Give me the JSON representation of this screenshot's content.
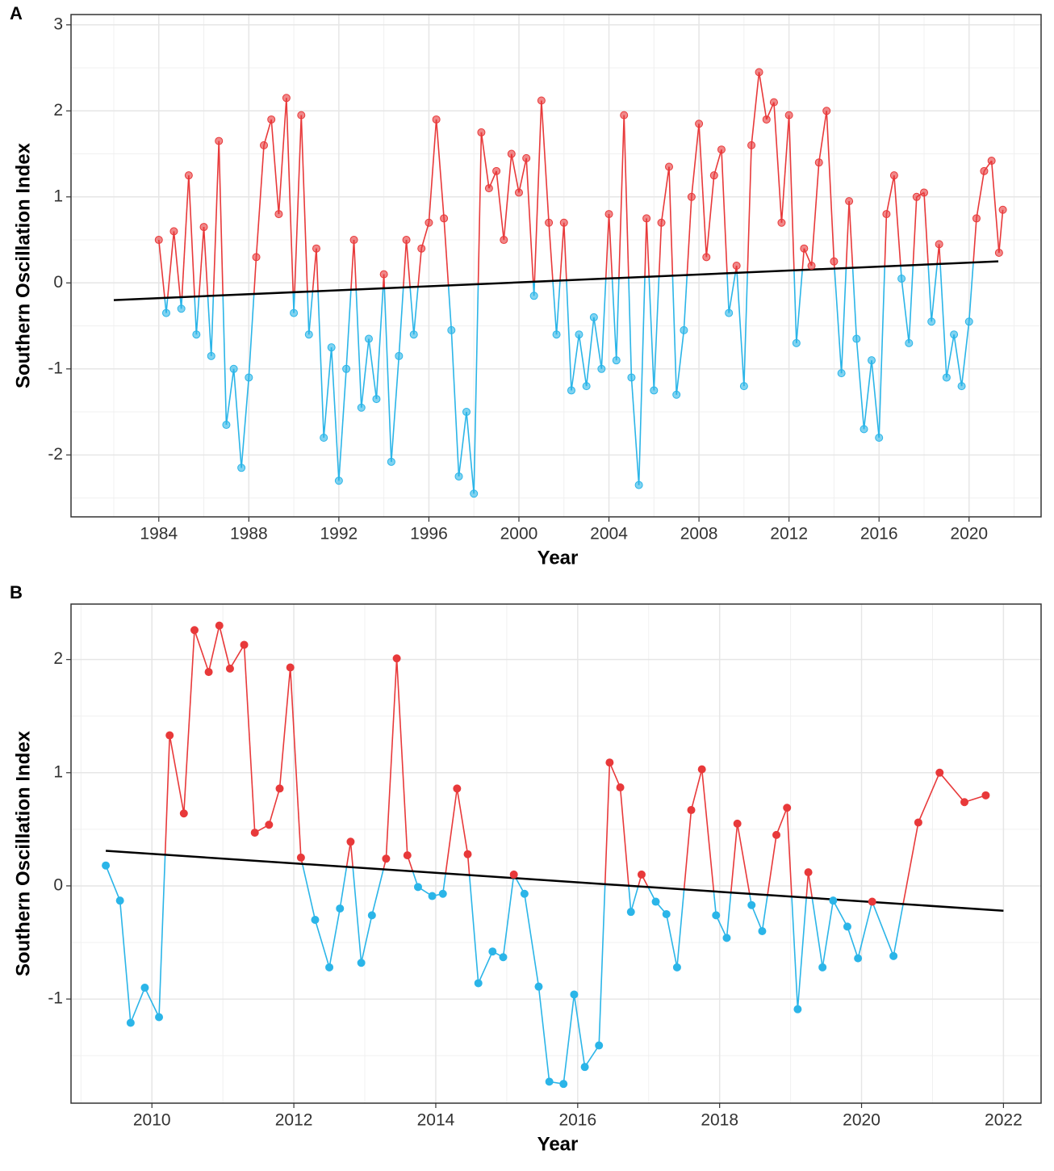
{
  "chart_data": [
    {
      "type": "line",
      "label": "A",
      "xlabel": "Year",
      "ylabel": "Southern Oscillation Index",
      "x": [
        1984,
        1984.33,
        1984.67,
        1985,
        1985.33,
        1985.67,
        1986,
        1986.33,
        1986.67,
        1987,
        1987.33,
        1987.67,
        1988,
        1988.33,
        1988.67,
        1989,
        1989.33,
        1989.67,
        1990,
        1990.33,
        1990.67,
        1991,
        1991.33,
        1991.67,
        1992,
        1992.33,
        1992.67,
        1993,
        1993.33,
        1993.67,
        1994,
        1994.33,
        1994.67,
        1995,
        1995.33,
        1995.67,
        1996,
        1996.33,
        1996.67,
        1997,
        1997.33,
        1997.67,
        1998,
        1998.33,
        1998.67,
        1999,
        1999.33,
        1999.67,
        2000,
        2000.33,
        2000.67,
        2001,
        2001.33,
        2001.67,
        2002,
        2002.33,
        2002.67,
        2003,
        2003.33,
        2003.67,
        2004,
        2004.33,
        2004.67,
        2005,
        2005.33,
        2005.67,
        2006,
        2006.33,
        2006.67,
        2007,
        2007.33,
        2007.67,
        2008,
        2008.33,
        2008.67,
        2009,
        2009.33,
        2009.67,
        2010,
        2010.33,
        2010.67,
        2011,
        2011.33,
        2011.67,
        2012,
        2012.33,
        2012.67,
        2013,
        2013.33,
        2013.67,
        2014,
        2014.33,
        2014.67,
        2015,
        2015.33,
        2015.67,
        2016,
        2016.33,
        2016.67,
        2017,
        2017.33,
        2017.67,
        2018,
        2018.33,
        2018.67,
        2019,
        2019.33,
        2019.67,
        2020,
        2020.33,
        2020.67,
        2021,
        2021.33,
        2021.5
      ],
      "values": [
        0.5,
        -0.35,
        0.6,
        -0.3,
        1.25,
        -0.6,
        0.65,
        -0.85,
        1.65,
        -1.65,
        -1.0,
        -2.15,
        -1.1,
        0.3,
        1.6,
        1.9,
        0.8,
        2.15,
        -0.35,
        1.95,
        -0.6,
        0.4,
        -1.8,
        -0.75,
        -2.3,
        -1.0,
        0.5,
        -1.45,
        -0.65,
        -1.35,
        0.1,
        -2.08,
        -0.85,
        0.5,
        -0.6,
        0.4,
        0.7,
        1.9,
        0.75,
        -0.55,
        -2.25,
        -1.5,
        -2.45,
        1.75,
        1.1,
        1.3,
        0.5,
        1.5,
        1.05,
        1.45,
        -0.15,
        2.12,
        0.7,
        -0.6,
        0.7,
        -1.25,
        -0.6,
        -1.2,
        -0.4,
        -1.0,
        0.8,
        -0.9,
        1.95,
        -1.1,
        -2.35,
        0.75,
        -1.25,
        0.7,
        1.35,
        -1.3,
        -0.55,
        1.0,
        1.85,
        0.3,
        1.25,
        1.55,
        -0.35,
        0.2,
        -1.2,
        1.6,
        2.45,
        1.9,
        2.1,
        0.7,
        1.95,
        -0.7,
        0.4,
        0.2,
        1.4,
        2.0,
        0.25,
        -1.05,
        0.95,
        -0.65,
        -1.7,
        -0.9,
        -1.8,
        0.8,
        1.25,
        0.05,
        -0.7,
        1.0,
        1.05,
        -0.45,
        0.45,
        -1.1,
        -0.6,
        -1.2,
        -0.45,
        0.75,
        1.3,
        1.42,
        0.35,
        0.85
      ],
      "trend": {
        "x": [
          1982,
          2021.3
        ],
        "values": [
          -0.2,
          0.25
        ]
      },
      "colors": {
        "above": "#e8393a",
        "below": "#2bb5e8",
        "trend": "#000000"
      },
      "marker_opacity": 0.6,
      "xlim": [
        1980.1,
        2023.2
      ],
      "ylim": [
        -2.72,
        3.12
      ],
      "xticks": [
        1984,
        1988,
        1992,
        1996,
        2000,
        2004,
        2008,
        2012,
        2016,
        2020
      ],
      "yticks": [
        -2,
        -1,
        0,
        1,
        2,
        3
      ],
      "grid": true
    },
    {
      "type": "line",
      "label": "B",
      "xlabel": "Year",
      "ylabel": "Southern Oscillation Index",
      "x": [
        2009.35,
        2009.55,
        2009.7,
        2009.9,
        2010.1,
        2010.25,
        2010.45,
        2010.6,
        2010.8,
        2010.95,
        2011.1,
        2011.3,
        2011.45,
        2011.65,
        2011.8,
        2011.95,
        2012.1,
        2012.3,
        2012.5,
        2012.65,
        2012.8,
        2012.95,
        2013.1,
        2013.3,
        2013.45,
        2013.6,
        2013.75,
        2013.95,
        2014.1,
        2014.3,
        2014.45,
        2014.6,
        2014.8,
        2014.95,
        2015.1,
        2015.25,
        2015.45,
        2015.6,
        2015.8,
        2015.95,
        2016.1,
        2016.3,
        2016.45,
        2016.6,
        2016.75,
        2016.9,
        2017.1,
        2017.25,
        2017.4,
        2017.6,
        2017.75,
        2017.95,
        2018.1,
        2018.25,
        2018.45,
        2018.6,
        2018.8,
        2018.95,
        2019.1,
        2019.25,
        2019.45,
        2019.6,
        2019.8,
        2019.95,
        2020.15,
        2020.45,
        2020.8,
        2021.1,
        2021.45,
        2021.75
      ],
      "values": [
        0.18,
        -0.13,
        -1.21,
        -0.9,
        -1.16,
        1.33,
        0.64,
        2.26,
        1.89,
        2.3,
        1.92,
        2.13,
        0.47,
        0.54,
        0.86,
        1.93,
        0.25,
        -0.3,
        -0.72,
        -0.2,
        0.39,
        -0.68,
        -0.26,
        0.24,
        2.01,
        0.27,
        -0.01,
        -0.09,
        -0.07,
        0.86,
        0.28,
        -0.86,
        -0.58,
        -0.63,
        0.1,
        -0.07,
        -0.89,
        -1.73,
        -1.75,
        -0.96,
        -1.6,
        -1.41,
        1.09,
        0.87,
        -0.23,
        0.1,
        -0.14,
        -0.25,
        -0.72,
        0.67,
        1.03,
        -0.26,
        -0.46,
        0.55,
        -0.17,
        -0.4,
        0.45,
        0.69,
        -1.09,
        0.12,
        -0.72,
        -0.13,
        -0.36,
        -0.64,
        -0.14,
        -0.62,
        0.56,
        1.0,
        0.74,
        0.8
      ],
      "trend": {
        "x": [
          2009.35,
          2022
        ],
        "values": [
          0.31,
          -0.22
        ]
      },
      "colors": {
        "above": "#e8393a",
        "below": "#2bb5e8",
        "trend": "#000000"
      },
      "marker_opacity": 1,
      "xlim": [
        2008.86,
        2022.53
      ],
      "ylim": [
        -1.92,
        2.49
      ],
      "xticks": [
        2010,
        2012,
        2014,
        2016,
        2018,
        2020,
        2022
      ],
      "yticks": [
        -1,
        0,
        1,
        2
      ],
      "grid": true
    }
  ]
}
